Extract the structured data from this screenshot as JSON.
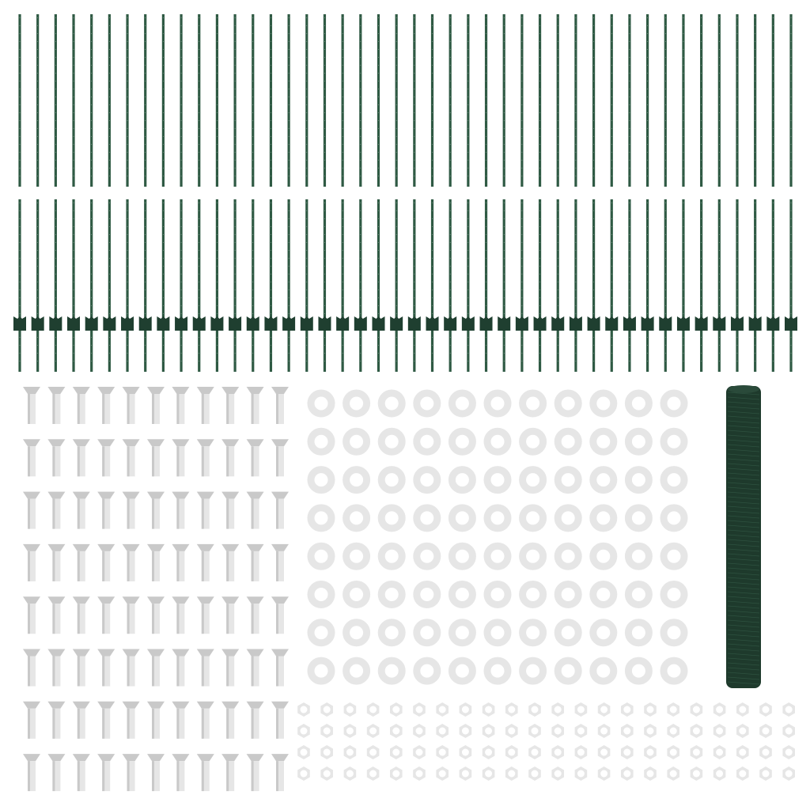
{
  "product": {
    "posts_top_row": 44,
    "posts_bottom_row": 44,
    "bolts": {
      "columns": 11,
      "rows": 8
    },
    "washers": {
      "columns": 11,
      "rows": 8
    },
    "nuts": {
      "columns": 22,
      "rows": 4
    },
    "mesh_rolls": 1
  },
  "colors": {
    "post": "#2f5a44",
    "post_dark": "#1f3f30",
    "hardware": "#e6e6e6",
    "hardware_shade": "#c9c9c9",
    "mesh": "#1e3a2c",
    "background": "#ffffff"
  }
}
